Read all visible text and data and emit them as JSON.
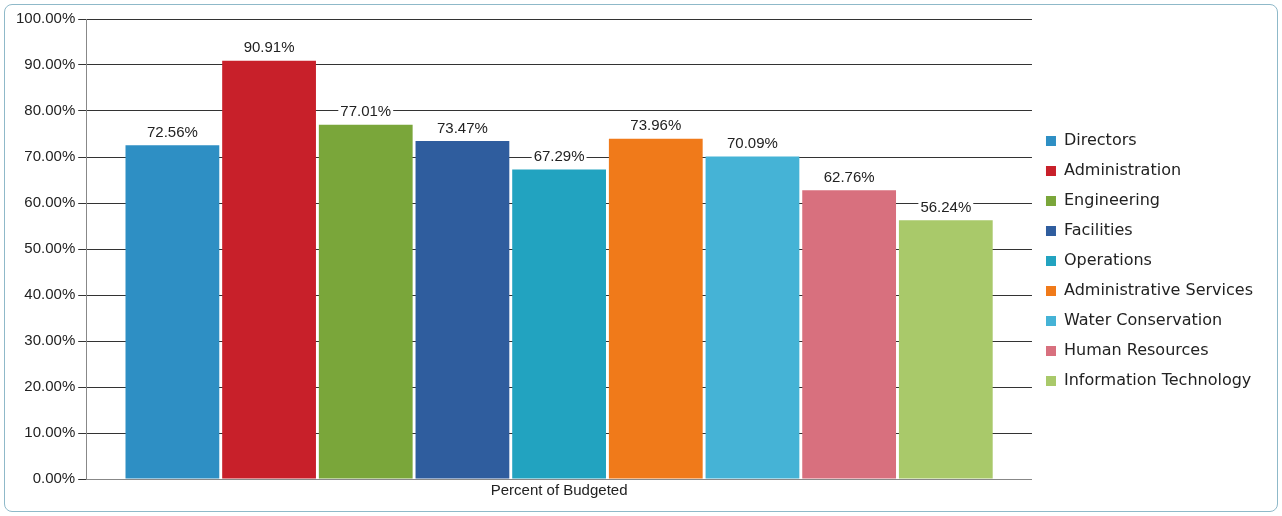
{
  "chart_data": {
    "type": "bar",
    "categories": [
      "Percent of Budgeted"
    ],
    "series": [
      {
        "name": "Directors",
        "color": "#2e8fc4",
        "values": [
          72.56
        ],
        "value_labels": [
          "72.56%"
        ]
      },
      {
        "name": "Administration",
        "color": "#c8202a",
        "values": [
          90.91
        ],
        "value_labels": [
          "90.91%"
        ]
      },
      {
        "name": "Engineering",
        "color": "#7aa63a",
        "values": [
          77.01
        ],
        "value_labels": [
          "77.01%"
        ]
      },
      {
        "name": "Facilities",
        "color": "#2f5d9e",
        "values": [
          73.47
        ],
        "value_labels": [
          "73.47%"
        ]
      },
      {
        "name": "Operations",
        "color": "#22a3c0",
        "values": [
          67.29
        ],
        "value_labels": [
          "67.29%"
        ]
      },
      {
        "name": "Administrative Services",
        "color": "#f07a1a",
        "values": [
          73.96
        ],
        "value_labels": [
          "73.96%"
        ]
      },
      {
        "name": "Water Conservation",
        "color": "#45b3d6",
        "values": [
          70.09
        ],
        "value_labels": [
          "70.09%"
        ]
      },
      {
        "name": "Human Resources",
        "color": "#d8707e",
        "values": [
          62.76
        ],
        "value_labels": [
          "62.76%"
        ]
      },
      {
        "name": "Information Technology",
        "color": "#a9c96a",
        "values": [
          56.24
        ],
        "value_labels": [
          "56.24%"
        ]
      }
    ],
    "ylim": [
      0,
      100
    ],
    "yticks": [
      {
        "value": 0,
        "label": "0.00%"
      },
      {
        "value": 10,
        "label": "10.00%"
      },
      {
        "value": 20,
        "label": "20.00%"
      },
      {
        "value": 30,
        "label": "30.00%"
      },
      {
        "value": 40,
        "label": "40.00%"
      },
      {
        "value": 50,
        "label": "50.00%"
      },
      {
        "value": 60,
        "label": "60.00%"
      },
      {
        "value": 70,
        "label": "70.00%"
      },
      {
        "value": 80,
        "label": "80.00%"
      },
      {
        "value": 90,
        "label": "90.00%"
      },
      {
        "value": 100,
        "label": "100.00%"
      }
    ],
    "grid": "y",
    "legend": "right"
  }
}
